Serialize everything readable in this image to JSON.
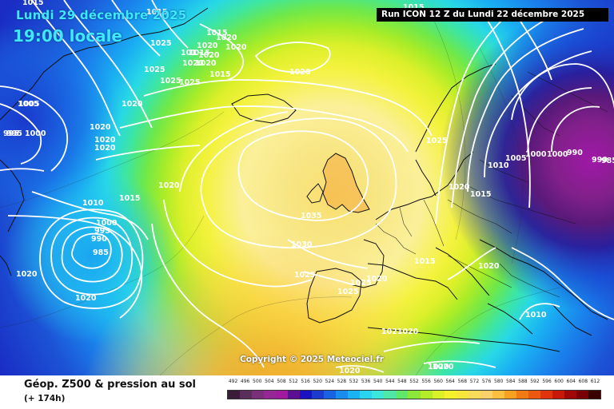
{
  "header": {
    "date": "Lundi 29 décembre 2025",
    "time": "19:00 locale",
    "run": "Run ICON 12 Z du Lundi 22 décembre 2025"
  },
  "footer": {
    "title": "Géop. Z500 & pression au sol",
    "lead": "(+ 174h)",
    "copyright": "Copyright © 2025 Meteociel.fr"
  },
  "isobars": [
    "1015",
    "1015",
    "1025",
    "1020",
    "1020",
    "1020",
    "1015",
    "1020",
    "1015",
    "1015",
    "1025",
    "1025",
    "1020",
    "1020",
    "1025",
    "1015",
    "1020",
    "1005",
    "1020",
    "995",
    "1000",
    "1020",
    "1020",
    "1020",
    "1010",
    "1015",
    "1020",
    "1035",
    "1000",
    "995",
    "990",
    "985",
    "1030",
    "1025",
    "1020",
    "1025",
    "1025",
    "990",
    "1000",
    "1005",
    "1025",
    "1015",
    "1020",
    "1015",
    "1020",
    "1010",
    "1010",
    "1005",
    "1000",
    "995",
    "990",
    "985",
    "1020",
    "1020",
    "1021020",
    "1020",
    "1020",
    "1020",
    "101"
  ],
  "legend": {
    "levels": [
      "492",
      "496",
      "500",
      "504",
      "508",
      "512",
      "516",
      "520",
      "524",
      "528",
      "532",
      "536",
      "540",
      "544",
      "548",
      "552",
      "556",
      "560",
      "564",
      "568",
      "572",
      "576",
      "580",
      "584",
      "588",
      "592",
      "596",
      "600",
      "604",
      "608",
      "612"
    ],
    "colors": [
      "#3a1c3a",
      "#5a2d5a",
      "#7a2f7a",
      "#962896",
      "#a01aa0",
      "#5a1090",
      "#1a12c0",
      "#1c3ad0",
      "#1a62e4",
      "#1a8cf0",
      "#1ab4f4",
      "#28d4f0",
      "#3ce6d8",
      "#4fe8a8",
      "#5fe86a",
      "#8ae83a",
      "#b4ec2a",
      "#dcf02a",
      "#f4f02c",
      "#f8e63a",
      "#fadc5a",
      "#fcd06a",
      "#fcc040",
      "#f8a020",
      "#f27a14",
      "#ec5810",
      "#e0340c",
      "#c81808",
      "#a00808",
      "#7a0000",
      "#3a0000"
    ]
  }
}
